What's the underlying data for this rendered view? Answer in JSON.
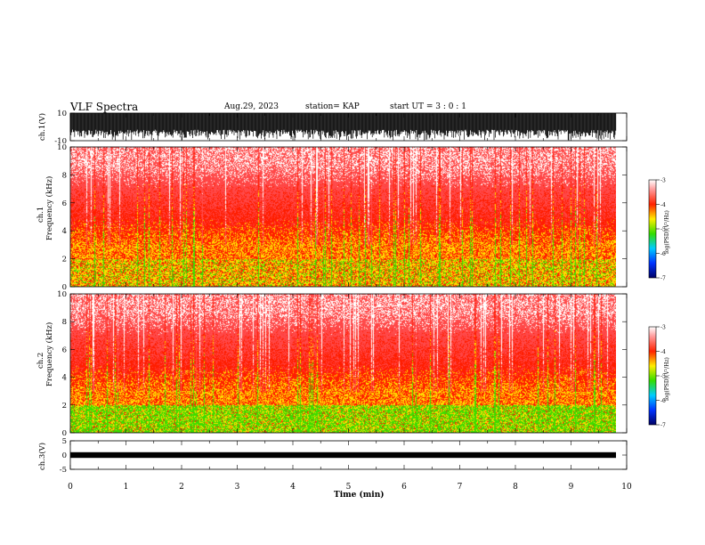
{
  "header": {
    "title": "VLF Spectra",
    "date": "Aug.29, 2023",
    "station": "station= KAP",
    "start": "start  UT  =   3 : 0  : 1"
  },
  "chart_data": [
    {
      "type": "line",
      "ylabel": "ch.1(V)",
      "ylim": [
        -10,
        10
      ],
      "y_ticks": [
        "10",
        "-10"
      ],
      "description_of_signal": "dense noisy waveform saturating near +10 V"
    },
    {
      "type": "heatmap",
      "ylabel": "ch.1\nFrequency (kHz)",
      "ylim": [
        0,
        10
      ],
      "y_ticks": [
        "0",
        "2",
        "4",
        "6",
        "8",
        "10"
      ],
      "colorbar": {
        "label": "log(PSD)(V²/Hz)",
        "range": [
          -7,
          -3
        ],
        "ticks": [
          "-3",
          "-4",
          "-5",
          "-6",
          "-7"
        ]
      }
    },
    {
      "type": "heatmap",
      "ylabel": "ch.2\nFrequency (kHz)",
      "ylim": [
        0,
        10
      ],
      "y_ticks": [
        "0",
        "2",
        "4",
        "6",
        "8",
        "10"
      ],
      "colorbar": {
        "label": "log(PSD)(V²/Hz)",
        "range": [
          -7,
          -3
        ],
        "ticks": [
          "-3",
          "-4",
          "-5",
          "-6",
          "-7"
        ]
      }
    },
    {
      "type": "line",
      "ylabel": "ch.3(V)",
      "ylim": [
        -5,
        5
      ],
      "y_ticks": [
        "5",
        "0",
        "-5"
      ],
      "xlabel": "Time (min)",
      "xlim": [
        0,
        10
      ],
      "x_ticks": [
        "0",
        "1",
        "2",
        "3",
        "4",
        "5",
        "6",
        "7",
        "8",
        "9",
        "10"
      ]
    }
  ],
  "labels": {
    "ch1_axis": "ch.1(V)",
    "ch1_freq_a": "ch.1",
    "ch1_freq_b": "Frequency (kHz)",
    "ch2_freq_a": "ch.2",
    "ch2_freq_b": "Frequency (kHz)",
    "ch3_axis": "ch.3(V)",
    "xlabel": "Time (min)",
    "cbar_label": "log(PSD)(V²/Hz)"
  },
  "colors": {
    "background": "#ffffff",
    "axis": "#000000",
    "psd_low": "#0000aa",
    "psd_mid_green": "#33dd00",
    "psd_yellow": "#ffee00",
    "psd_red": "#ff2200",
    "psd_high": "#ffffff"
  }
}
